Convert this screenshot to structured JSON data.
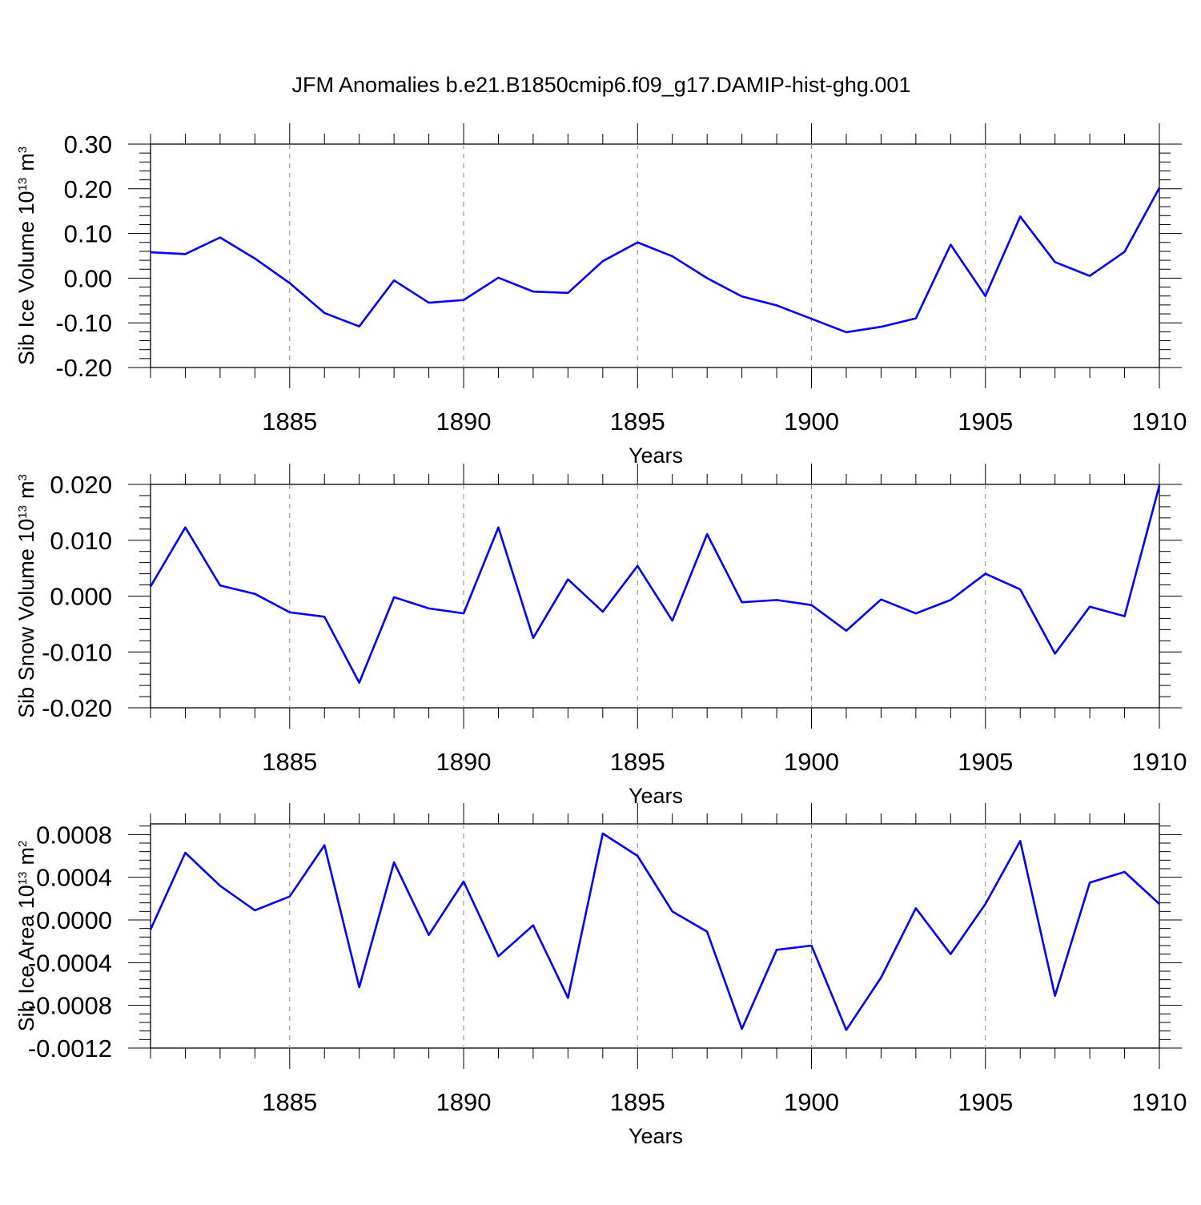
{
  "title": "JFM Anomalies b.e21.B1850cmip6.f09_g17.DAMIP-hist-ghg.001",
  "colors": {
    "line": "#0000ff",
    "axis": "#000000",
    "grid": "#888888"
  },
  "chart_data": [
    {
      "type": "line",
      "ylabel": "Sib Ice Volume 10",
      "ylabel_exp": "13",
      "ylabel_unit": "m",
      "ylabel_unit_exp": "3",
      "xlabel": "Years",
      "xlim": [
        1881,
        1910
      ],
      "ylim": [
        -0.2,
        0.3
      ],
      "yticks": [
        -0.2,
        -0.1,
        0.0,
        0.1,
        0.2,
        0.3
      ],
      "ytick_labels": [
        "-0.20",
        "-0.10",
        "0.00",
        "0.10",
        "0.20",
        "0.30"
      ],
      "xticks": [
        1885,
        1890,
        1895,
        1900,
        1905,
        1910
      ],
      "xtick_labels": [
        "1885",
        "1890",
        "1895",
        "1900",
        "1905",
        "1910"
      ],
      "grid": "vertical dashed at major x ticks",
      "x": [
        1881,
        1882,
        1883,
        1884,
        1885,
        1886,
        1887,
        1888,
        1889,
        1890,
        1891,
        1892,
        1893,
        1894,
        1895,
        1896,
        1897,
        1898,
        1899,
        1900,
        1901,
        1902,
        1903,
        1904,
        1905,
        1906,
        1907,
        1908,
        1909,
        1910
      ],
      "values": [
        0.058,
        0.054,
        0.091,
        0.044,
        -0.011,
        -0.078,
        -0.108,
        -0.005,
        -0.055,
        -0.049,
        0.001,
        -0.03,
        -0.033,
        0.038,
        0.08,
        0.049,
        0.0,
        -0.041,
        -0.061,
        -0.091,
        -0.121,
        -0.109,
        -0.09,
        0.075,
        -0.04,
        0.138,
        0.036,
        0.005,
        0.059,
        0.202
      ]
    },
    {
      "type": "line",
      "ylabel": "Sib Snow Volume 10",
      "ylabel_exp": "13",
      "ylabel_unit": "m",
      "ylabel_unit_exp": "3",
      "xlabel": "Years",
      "xlim": [
        1881,
        1910
      ],
      "ylim": [
        -0.02,
        0.02
      ],
      "yticks": [
        -0.02,
        -0.01,
        0.0,
        0.01,
        0.02
      ],
      "ytick_labels": [
        "-0.020",
        "-0.010",
        "0.000",
        "0.010",
        "0.020"
      ],
      "xticks": [
        1885,
        1890,
        1895,
        1900,
        1905,
        1910
      ],
      "xtick_labels": [
        "1885",
        "1890",
        "1895",
        "1900",
        "1905",
        "1910"
      ],
      "grid": "vertical dashed at major x ticks",
      "x": [
        1881,
        1882,
        1883,
        1884,
        1885,
        1886,
        1887,
        1888,
        1889,
        1890,
        1891,
        1892,
        1893,
        1894,
        1895,
        1896,
        1897,
        1898,
        1899,
        1900,
        1901,
        1902,
        1903,
        1904,
        1905,
        1906,
        1907,
        1908,
        1909,
        1910
      ],
      "values": [
        0.0017,
        0.0123,
        0.0019,
        0.0004,
        -0.0029,
        -0.0037,
        -0.0155,
        -0.0002,
        -0.0022,
        -0.0031,
        0.0123,
        -0.0075,
        0.003,
        -0.0028,
        0.0054,
        -0.0044,
        0.0111,
        -0.0011,
        -0.0007,
        -0.0016,
        -0.0062,
        -0.0006,
        -0.0031,
        -0.0007,
        0.004,
        0.0012,
        -0.0103,
        -0.0019,
        -0.0036,
        0.0198
      ]
    },
    {
      "type": "line",
      "ylabel": "Sib Ice Area 10",
      "ylabel_exp": "13",
      "ylabel_unit": "m",
      "ylabel_unit_exp": "2",
      "xlabel": "Years",
      "xlim": [
        1881,
        1910
      ],
      "ylim": [
        -0.0012,
        0.0009
      ],
      "yticks": [
        -0.0012,
        -0.0008,
        -0.0004,
        0.0,
        0.0004,
        0.0008
      ],
      "ytick_labels": [
        "-0.0012",
        "-0.0008",
        "-0.0004",
        "0.0000",
        "0.0004",
        "0.0008"
      ],
      "xticks": [
        1885,
        1890,
        1895,
        1900,
        1905,
        1910
      ],
      "xtick_labels": [
        "1885",
        "1890",
        "1895",
        "1900",
        "1905",
        "1910"
      ],
      "grid": "vertical dashed at major x ticks",
      "x": [
        1881,
        1882,
        1883,
        1884,
        1885,
        1886,
        1887,
        1888,
        1889,
        1890,
        1891,
        1892,
        1893,
        1894,
        1895,
        1896,
        1897,
        1898,
        1899,
        1900,
        1901,
        1902,
        1903,
        1904,
        1905,
        1906,
        1907,
        1908,
        1909,
        1910
      ],
      "values": [
        -9e-05,
        0.00063,
        0.00032,
        9e-05,
        0.00022,
        0.0007,
        -0.00063,
        0.00054,
        -0.00014,
        0.00036,
        -0.00034,
        -5e-05,
        -0.00073,
        0.00081,
        0.0006,
        8e-05,
        -0.00011,
        -0.00102,
        -0.00028,
        -0.00024,
        -0.00103,
        -0.00054,
        0.00011,
        -0.00032,
        0.00015,
        0.00074,
        -0.00071,
        0.00035,
        0.00045,
        0.00015
      ]
    }
  ]
}
